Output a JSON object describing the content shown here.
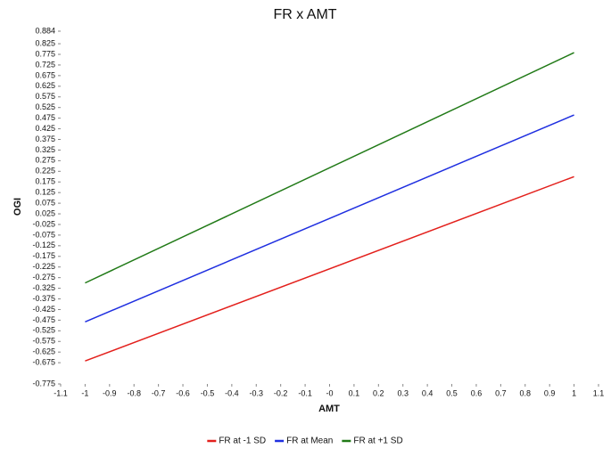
{
  "chart_data": {
    "type": "line",
    "title": "FR x AMT",
    "x_label": "AMT",
    "y_label": "OGI",
    "x": [
      -1,
      1
    ],
    "series": [
      {
        "name": "FR at -1 SD",
        "color": "#e3201c",
        "values": [
          -0.667,
          0.2
        ]
      },
      {
        "name": "FR at Mean",
        "color": "#1f2fe0",
        "values": [
          -0.483,
          0.49
        ]
      },
      {
        "name": "FR at +1 SD",
        "color": "#217a17",
        "values": [
          -0.3,
          0.783
        ]
      }
    ],
    "xlim": [
      -1.1,
      1.1
    ],
    "xticks": [
      -1.1,
      -1,
      -0.9,
      -0.8,
      -0.7,
      -0.6,
      -0.5,
      -0.4,
      -0.3,
      -0.2,
      -0.1,
      {
        "value": 0,
        "label": "-0"
      },
      0.1,
      0.2,
      0.3,
      0.4,
      0.5,
      0.6,
      0.7,
      0.8,
      0.9,
      1,
      1.1
    ],
    "ylim": [
      -0.775,
      0.884
    ],
    "yticks": [
      0.884,
      0.825,
      0.775,
      0.725,
      0.675,
      0.625,
      0.575,
      0.525,
      0.475,
      0.425,
      0.375,
      0.325,
      0.275,
      0.225,
      0.175,
      0.125,
      0.075,
      0.025,
      -0.025,
      -0.075,
      -0.125,
      -0.175,
      -0.225,
      -0.275,
      -0.325,
      -0.375,
      -0.425,
      -0.475,
      -0.525,
      -0.575,
      -0.625,
      -0.675,
      -0.775
    ],
    "legend": "bottom"
  }
}
